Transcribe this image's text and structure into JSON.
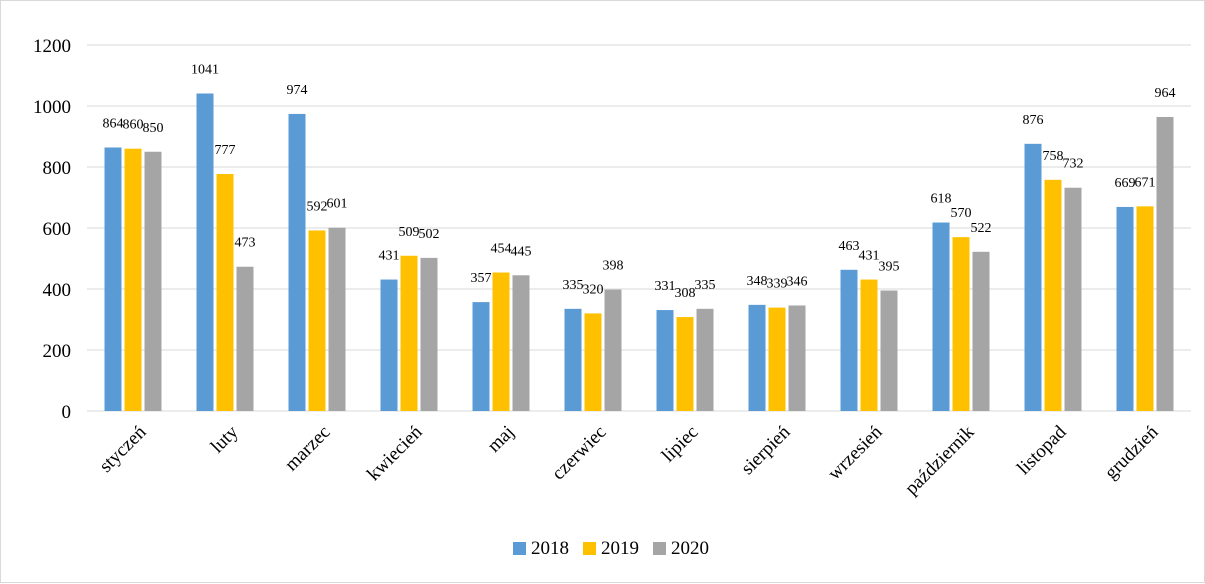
{
  "chart_data": {
    "type": "bar",
    "title": "",
    "xlabel": "",
    "ylabel": "",
    "ylim": [
      0,
      1200
    ],
    "yticks": [
      0,
      200,
      400,
      600,
      800,
      1000,
      1200
    ],
    "grid": true,
    "legend_position": "bottom",
    "categories": [
      "styczeń",
      "luty",
      "marzec",
      "kwiecień",
      "maj",
      "czerwiec",
      "lipiec",
      "sierpień",
      "wrzesień",
      "październik",
      "listopad",
      "grudzień"
    ],
    "series": [
      {
        "name": "2018",
        "color": "#5b9bd5",
        "values": [
          864,
          1041,
          974,
          431,
          357,
          335,
          331,
          348,
          463,
          618,
          876,
          669
        ]
      },
      {
        "name": "2019",
        "color": "#ffc000",
        "values": [
          860,
          777,
          592,
          509,
          454,
          320,
          308,
          339,
          431,
          570,
          758,
          671
        ]
      },
      {
        "name": "2020",
        "color": "#a5a5a5",
        "values": [
          850,
          473,
          601,
          502,
          445,
          398,
          335,
          346,
          395,
          522,
          732,
          964
        ]
      }
    ]
  }
}
